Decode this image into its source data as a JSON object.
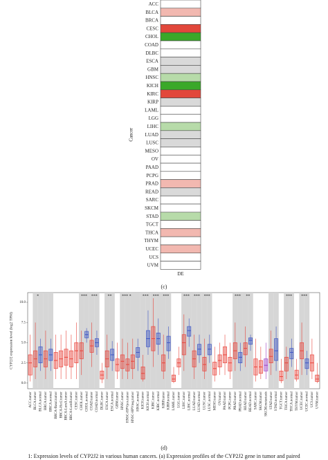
{
  "chart_data": [
    {
      "type": "heatmap",
      "panel_label": "(c)",
      "ylabel": "Cancer",
      "column_label": "DE",
      "categories": [
        "ACC",
        "BLCA",
        "BRCA",
        "CESC",
        "CHOL",
        "COAD",
        "DLBC",
        "ESCA",
        "GBM",
        "HNSC",
        "KICH",
        "KIRC",
        "KIRP",
        "LAML",
        "LGG",
        "LIHC",
        "LUAD",
        "LUSC",
        "MESO",
        "OV",
        "PAAD",
        "PCPG",
        "PRAD",
        "READ",
        "SARC",
        "SKCM",
        "STAD",
        "TGCT",
        "THCA",
        "THYM",
        "UCEC",
        "UCS",
        "UVM"
      ],
      "colors": [
        "#ffffff",
        "#f2b8b0",
        "#ffffff",
        "#e2473b",
        "#3aa829",
        "#ffffff",
        "#ffffff",
        "#d9d9d9",
        "#d9d9d9",
        "#b7dba9",
        "#3aa829",
        "#e2473b",
        "#d9d9d9",
        "#ffffff",
        "#ffffff",
        "#b7dba9",
        "#d9d9d9",
        "#d9d9d9",
        "#ffffff",
        "#ffffff",
        "#ffffff",
        "#ffffff",
        "#f2b8b0",
        "#d9d9d9",
        "#ffffff",
        "#ffffff",
        "#b7dba9",
        "#ffffff",
        "#f2b8b0",
        "#ffffff",
        "#f2b8b0",
        "#ffffff",
        "#ffffff"
      ]
    },
    {
      "type": "box",
      "panel_label": "(d)",
      "ylabel": "CYP2J2 expression level (log2 TPM)",
      "ylim": [
        -0.7,
        11.2
      ],
      "yticks": [
        {
          "value": 0,
          "label": "0.0"
        },
        2.5,
        {
          "value": 5,
          "label": "5.0"
        },
        7.5,
        {
          "value": 10,
          "label": "10.0"
        }
      ],
      "categories": [
        "ACC.tumor",
        "BLCA.tumor",
        "BLCA.normal",
        "BRCA.tumor",
        "BRCA.normal",
        "BRCA-Basal.tumor",
        "BRCA-Her2.tumor",
        "BRCA-LumA.tumor",
        "BRCA-LumB.tumor",
        "CESC.tumor",
        "CHOL.tumor",
        "CHOL.normal",
        "COAD.tumor",
        "COAD.normal",
        "DLBC.tumor",
        "ESCA.tumor",
        "ESCA.normal",
        "GBM.tumor",
        "HNSC.tumor",
        "HNSC-HPVpos.tumor",
        "HNSC-HPVneg.tumor",
        "HNSC.normal",
        "KICH.tumor",
        "KICH.normal",
        "KIRC.tumor",
        "KIRC.normal",
        "KIRP.tumor",
        "KIRP.normal",
        "LAML.tumor",
        "LGG.tumor",
        "LIHC.tumor",
        "LIHC.normal",
        "LUAD.tumor",
        "LUAD.normal",
        "LUSC.tumor",
        "LUSC.normal",
        "MESO.tumor",
        "OV.tumor",
        "PAAD.tumor",
        "PCPG.tumor",
        "PRAD.tumor",
        "PRAD.normal",
        "READ.tumor",
        "READ.normal",
        "SARC.tumor",
        "SKCM.tumor",
        "SKCM.metastasis",
        "STAD.tumor",
        "STAD.normal",
        "TGCT.tumor",
        "THCA.tumor",
        "THCA.normal",
        "THYM.tumor",
        "UCEC.tumor",
        "UCEC.normal",
        "UCS.tumor",
        "UVM.tumor"
      ],
      "whislo": [
        0.2,
        0.5,
        1.5,
        0.5,
        1.5,
        0.5,
        0.5,
        0.5,
        0.5,
        0.5,
        1,
        5,
        2,
        3.5,
        0,
        0.5,
        1.5,
        0.5,
        0.5,
        0.5,
        0.5,
        1.5,
        0.2,
        3.5,
        2,
        3.5,
        0.5,
        3,
        0,
        1,
        1.5,
        4.5,
        0.5,
        2.5,
        0.5,
        2.5,
        0.2,
        1,
        1,
        0.5,
        1.5,
        1.5,
        2,
        4,
        0.2,
        0.5,
        0.5,
        1,
        1.5,
        0,
        0.5,
        2,
        0.2,
        1,
        1,
        0.5,
        0
      ],
      "q1": [
        1,
        2,
        2.5,
        2,
        2.8,
        1.8,
        2,
        2.2,
        2,
        2.5,
        3,
        5.6,
        3.8,
        4.5,
        0.5,
        2,
        2.8,
        1.5,
        1.8,
        1.5,
        1.8,
        3.2,
        0.5,
        4.5,
        4,
        4.8,
        1.5,
        4,
        0.2,
        2,
        3.5,
        5.8,
        2,
        3.5,
        1.5,
        3.5,
        1,
        2,
        2.5,
        1.5,
        3,
        2.5,
        3.5,
        4.8,
        1,
        1.2,
        1.5,
        2.5,
        2.8,
        0.3,
        1.5,
        3,
        0.5,
        3,
        1.8,
        1.5,
        0.2
      ],
      "median": [
        2.5,
        3,
        3.5,
        3,
        3.5,
        2.8,
        3,
        3.2,
        3,
        4,
        4,
        6,
        4.6,
        5,
        1,
        3,
        3.5,
        2.3,
        2.7,
        2.3,
        2.7,
        3.8,
        1.2,
        5.5,
        5.5,
        5.5,
        2.5,
        5,
        0.5,
        2.5,
        5,
        6.5,
        3,
        4.2,
        2.3,
        4.2,
        1.8,
        2.8,
        3.5,
        2.5,
        4,
        3.2,
        4.3,
        5.3,
        2,
        2,
        2.2,
        3.3,
        4,
        0.8,
        2.5,
        3.8,
        1,
        4,
        2.5,
        2.5,
        0.5
      ],
      "q3": [
        3.5,
        4,
        4.5,
        4,
        4.2,
        3.8,
        4,
        4.2,
        4,
        5,
        5,
        6.4,
        5.3,
        5.5,
        1.5,
        4,
        4.2,
        3,
        3.5,
        3,
        3.5,
        4.4,
        2,
        6.5,
        7,
        6.2,
        3.5,
        5.8,
        1,
        3,
        6,
        7,
        4,
        4.8,
        3.2,
        4.8,
        2.6,
        3.5,
        4.5,
        3.2,
        5,
        3.8,
        5,
        5.6,
        3,
        2.8,
        3,
        4.2,
        5.5,
        1.5,
        3.2,
        4.3,
        1.6,
        5,
        3,
        3.5,
        1
      ],
      "whishi": [
        6,
        7.5,
        5.5,
        6.5,
        5.5,
        6,
        6,
        6.5,
        6,
        7.5,
        6.5,
        6.8,
        7.5,
        6.5,
        2.5,
        6,
        5.2,
        5,
        5.5,
        5,
        5.5,
        5.5,
        3.5,
        9,
        10.5,
        8,
        6,
        7,
        2,
        4.5,
        8.5,
        8,
        6,
        6,
        5.5,
        6,
        4.5,
        5,
        6,
        5,
        7.5,
        5,
        7,
        6,
        5.5,
        4.5,
        5,
        6.5,
        7,
        3,
        4.5,
        5.5,
        3,
        7.5,
        4,
        5.5,
        2.5
      ],
      "colors": [
        "#e8453c",
        "#e8453c",
        "#3d55c5",
        "#e8453c",
        "#3d55c5",
        "#e8453c",
        "#e8453c",
        "#e8453c",
        "#e8453c",
        "#e8453c",
        "#e8453c",
        "#3d55c5",
        "#e8453c",
        "#3d55c5",
        "#e8453c",
        "#e8453c",
        "#3d55c5",
        "#e8453c",
        "#e8453c",
        "#e8453c",
        "#e8453c",
        "#3d55c5",
        "#e8453c",
        "#3d55c5",
        "#e8453c",
        "#3d55c5",
        "#e8453c",
        "#3d55c5",
        "#e8453c",
        "#e8453c",
        "#e8453c",
        "#3d55c5",
        "#e8453c",
        "#3d55c5",
        "#e8453c",
        "#3d55c5",
        "#e8453c",
        "#e8453c",
        "#e8453c",
        "#e8453c",
        "#e8453c",
        "#3d55c5",
        "#e8453c",
        "#3d55c5",
        "#e8453c",
        "#e8453c",
        "#9b3fc2",
        "#e8453c",
        "#3d55c5",
        "#e8453c",
        "#e8453c",
        "#3d55c5",
        "#e8453c",
        "#e8453c",
        "#3d55c5",
        "#e8453c",
        "#e8453c"
      ],
      "shaded": [
        false,
        true,
        true,
        true,
        true,
        false,
        false,
        false,
        false,
        false,
        true,
        true,
        true,
        true,
        false,
        true,
        true,
        false,
        true,
        true,
        true,
        true,
        true,
        true,
        true,
        true,
        true,
        true,
        false,
        false,
        true,
        true,
        true,
        true,
        true,
        true,
        false,
        false,
        false,
        false,
        true,
        true,
        true,
        true,
        false,
        false,
        false,
        true,
        true,
        false,
        true,
        true,
        false,
        true,
        true,
        false,
        false
      ],
      "significance": [
        null,
        "*",
        null,
        null,
        null,
        null,
        null,
        null,
        null,
        null,
        "***",
        null,
        "***",
        null,
        null,
        "**",
        null,
        null,
        "***",
        "*",
        null,
        null,
        "***",
        null,
        "***",
        null,
        "***",
        null,
        null,
        null,
        "***",
        null,
        "***",
        null,
        "***",
        null,
        null,
        null,
        null,
        null,
        "***",
        null,
        "**",
        null,
        null,
        null,
        null,
        null,
        null,
        null,
        "***",
        null,
        null,
        "***",
        null,
        null,
        null
      ]
    }
  ],
  "caption": "1: Expression levels of CYP2J2 in various human cancers. (a) Expression profiles of the CYP2J2 gene in tumor and paired"
}
